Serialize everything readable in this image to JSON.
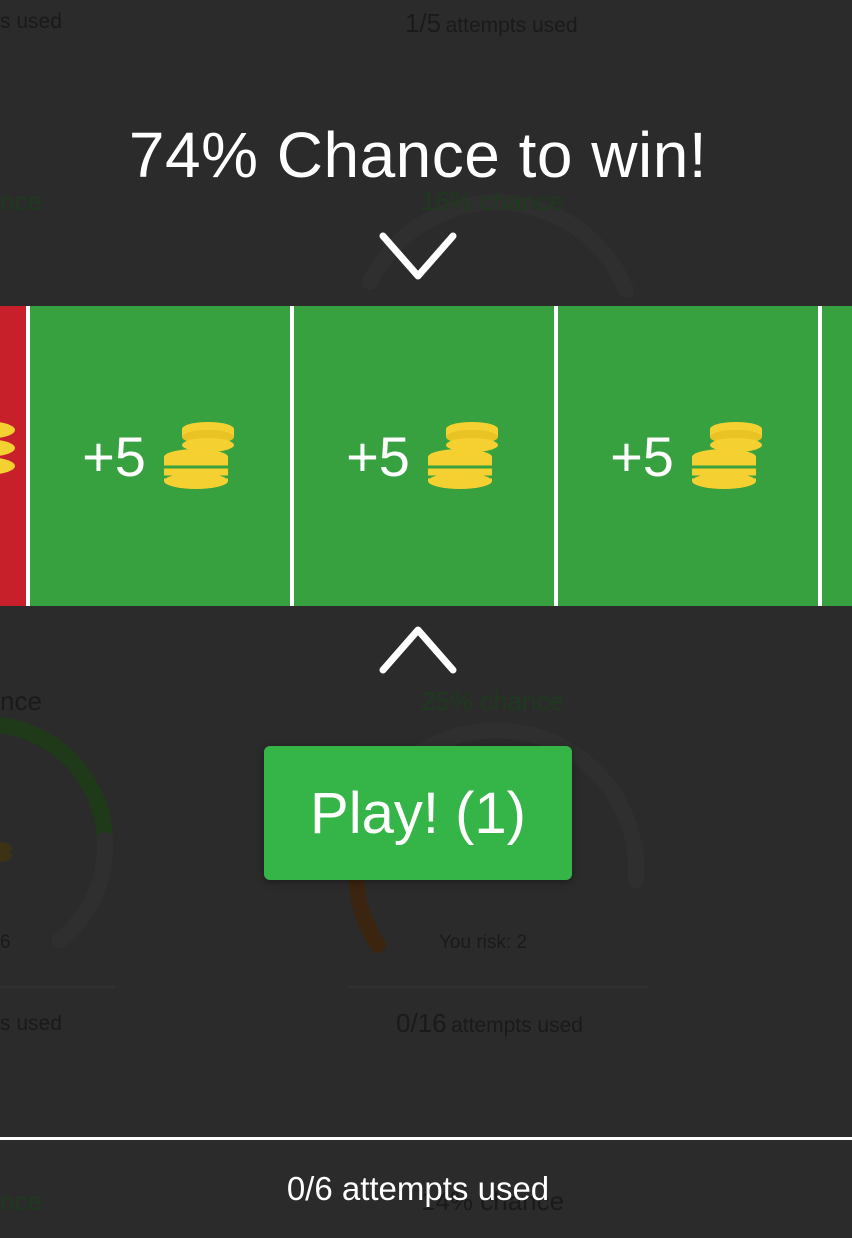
{
  "overlay": {
    "headline": "74% Chance to win!",
    "play_button": "Play! (1)",
    "bottom_status": "0/6 attempts used"
  },
  "reel": {
    "tiles": [
      {
        "label": "",
        "color": "#c8202a",
        "icon": "coin-stack-icon"
      },
      {
        "label": "+5",
        "color": "#37a13f",
        "icon": "coin-stack-icon"
      },
      {
        "label": "+5",
        "color": "#37a13f",
        "icon": "coin-stack-icon"
      },
      {
        "label": "+5",
        "color": "#37a13f",
        "icon": "coin-stack-icon"
      },
      {
        "label": "",
        "color": "#37a13f",
        "icon": ""
      }
    ]
  },
  "background_cards": {
    "top_left_attempts": "s used",
    "top_right_attempts_count": "1/5",
    "top_right_attempts_label": "attempts used",
    "upper_left_chance": "nce",
    "upper_right_chance": "16% chance",
    "middle_left_chance": "nce",
    "middle_right_chance": "25% chance",
    "left_risk": "6",
    "right_risk": "You risk: 2",
    "middle_left_attempts": "s used",
    "middle_right_attempts_count": "0/16",
    "middle_right_attempts_label": "attempts used",
    "bottom_left_chance": "nce",
    "bottom_right_chance": "14% chance"
  },
  "colors": {
    "background": "#2b2b2b",
    "win_tile": "#37a13f",
    "lose_tile": "#c8202a",
    "play_button": "#35b547",
    "coin": "#f4d030"
  }
}
